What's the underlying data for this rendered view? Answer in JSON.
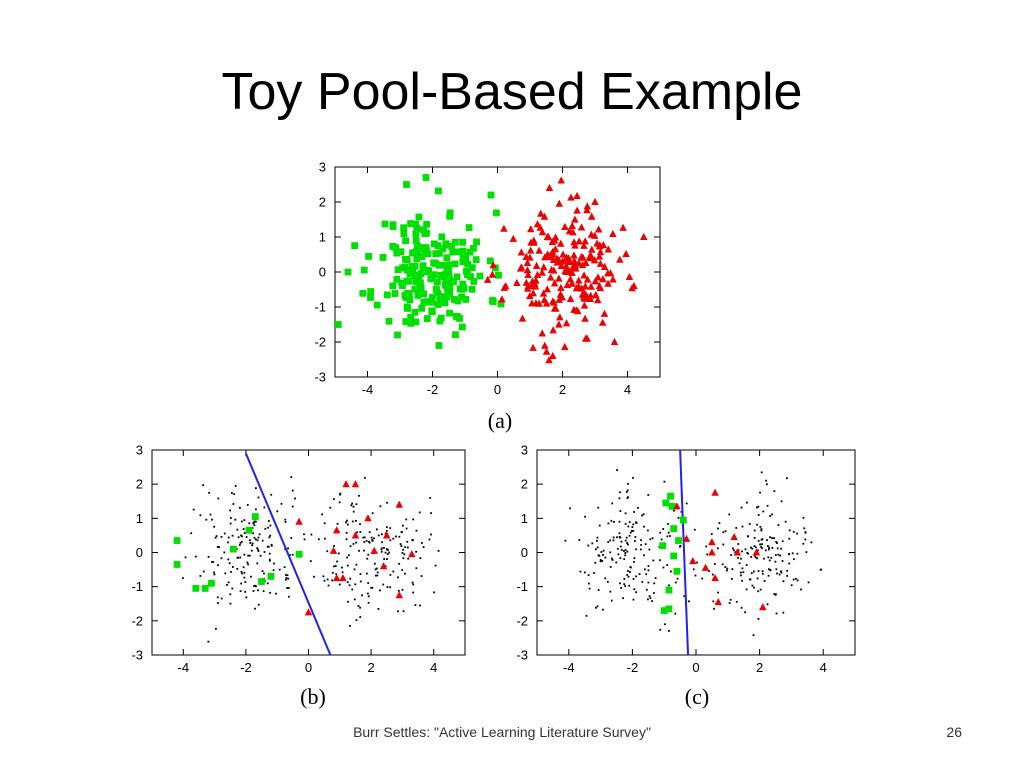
{
  "slide": {
    "title": "Toy Pool-Based Example",
    "footer": "Burr Settles: \"Active Learning Literature Survey\"",
    "page_number": "26"
  },
  "colors": {
    "class_a": "#00e000",
    "class_b": "#ee0000",
    "unlabeled": "#000000",
    "boundary": "#2222ee"
  },
  "chart_data": [
    {
      "id": "a",
      "type": "scatter",
      "caption": "(a)",
      "xlim": [
        -5,
        5
      ],
      "ylim": [
        -3,
        3
      ],
      "xticks": [
        -4,
        -2,
        0,
        2,
        4
      ],
      "yticks": [
        -3,
        -2,
        -1,
        0,
        1,
        2,
        3
      ],
      "series": [
        {
          "marker": "square",
          "color": "#00e000",
          "cluster": {
            "center": [
              -2,
              0
            ],
            "sd": 0.85,
            "count": 200,
            "seed": 11
          },
          "points": [
            [
              -2.2,
              2.7
            ],
            [
              -2.8,
              2.5
            ],
            [
              -0.2,
              2.2
            ],
            [
              -4.6,
              0.0
            ],
            [
              -4.9,
              -1.5
            ],
            [
              -1.8,
              -2.1
            ]
          ]
        },
        {
          "marker": "triangle",
          "color": "#ee0000",
          "cluster": {
            "center": [
              2,
              0
            ],
            "sd": 0.85,
            "count": 200,
            "seed": 23
          },
          "points": [
            [
              1.6,
              2.4
            ],
            [
              3.0,
              2.0
            ],
            [
              4.5,
              1.0
            ],
            [
              1.7,
              -2.4
            ],
            [
              3.6,
              -2.0
            ],
            [
              4.2,
              -0.4
            ]
          ]
        }
      ]
    },
    {
      "id": "b",
      "type": "scatter",
      "caption": "(b)",
      "xlim": [
        -5,
        5
      ],
      "ylim": [
        -3,
        3
      ],
      "xticks": [
        -4,
        -2,
        0,
        2,
        4
      ],
      "yticks": [
        -3,
        -2,
        -1,
        0,
        1,
        2,
        3
      ],
      "unlabeled": {
        "clusters": [
          {
            "center": [
              -2,
              0
            ],
            "sd": 0.9,
            "count": 180,
            "seed": 31
          },
          {
            "center": [
              2,
              0
            ],
            "sd": 0.9,
            "count": 180,
            "seed": 37
          }
        ]
      },
      "series": [
        {
          "marker": "square",
          "color": "#00e000",
          "points": [
            [
              -4.2,
              0.35
            ],
            [
              -4.2,
              -0.35
            ],
            [
              -3.6,
              -1.05
            ],
            [
              -3.3,
              -1.05
            ],
            [
              -3.1,
              -0.9
            ],
            [
              -2.4,
              0.1
            ],
            [
              -1.9,
              0.65
            ],
            [
              -1.7,
              1.05
            ],
            [
              -1.5,
              -0.85
            ],
            [
              -1.2,
              -0.7
            ],
            [
              -0.3,
              -0.05
            ]
          ]
        },
        {
          "marker": "triangle",
          "color": "#ee0000",
          "points": [
            [
              1.2,
              2.0
            ],
            [
              1.5,
              2.0
            ],
            [
              -0.3,
              0.9
            ],
            [
              0.9,
              0.65
            ],
            [
              1.5,
              0.5
            ],
            [
              2.5,
              0.5
            ],
            [
              2.9,
              1.4
            ],
            [
              1.9,
              1.0
            ],
            [
              0.8,
              0.05
            ],
            [
              2.1,
              0.05
            ],
            [
              3.3,
              -0.05
            ],
            [
              2.4,
              -0.4
            ],
            [
              0.9,
              -0.75
            ],
            [
              1.1,
              -0.75
            ],
            [
              2.9,
              -1.25
            ],
            [
              0.0,
              -1.75
            ]
          ]
        }
      ],
      "boundary": [
        [
          -2.0,
          2.9
        ],
        [
          0.7,
          -3.0
        ]
      ]
    },
    {
      "id": "c",
      "type": "scatter",
      "caption": "(c)",
      "xlim": [
        -5,
        5
      ],
      "ylim": [
        -3,
        3
      ],
      "xticks": [
        -4,
        -2,
        0,
        2,
        4
      ],
      "yticks": [
        -3,
        -2,
        -1,
        0,
        1,
        2,
        3
      ],
      "unlabeled": {
        "clusters": [
          {
            "center": [
              -2,
              0
            ],
            "sd": 0.9,
            "count": 180,
            "seed": 41
          },
          {
            "center": [
              2,
              0
            ],
            "sd": 0.9,
            "count": 180,
            "seed": 43
          }
        ]
      },
      "series": [
        {
          "marker": "square",
          "color": "#00e000",
          "points": [
            [
              -0.8,
              1.65
            ],
            [
              -0.95,
              1.45
            ],
            [
              -0.75,
              1.35
            ],
            [
              -0.4,
              0.95
            ],
            [
              -0.7,
              0.7
            ],
            [
              -0.55,
              0.35
            ],
            [
              -1.05,
              0.2
            ],
            [
              -0.7,
              -0.1
            ],
            [
              -0.6,
              -0.55
            ],
            [
              -0.85,
              -1.1
            ],
            [
              -1.0,
              -1.7
            ],
            [
              -0.85,
              -1.65
            ]
          ]
        },
        {
          "marker": "triangle",
          "color": "#ee0000",
          "points": [
            [
              -0.6,
              1.35
            ],
            [
              0.6,
              1.75
            ],
            [
              -0.3,
              0.4
            ],
            [
              0.5,
              0.3
            ],
            [
              1.2,
              0.45
            ],
            [
              0.5,
              0.0
            ],
            [
              1.3,
              0.0
            ],
            [
              1.9,
              0.0
            ],
            [
              -0.1,
              -0.25
            ],
            [
              0.3,
              -0.45
            ],
            [
              0.6,
              -0.75
            ],
            [
              0.7,
              -1.45
            ],
            [
              2.1,
              -1.6
            ]
          ]
        }
      ],
      "boundary": [
        [
          -0.5,
          3.0
        ],
        [
          -0.25,
          -3.0
        ]
      ]
    }
  ]
}
